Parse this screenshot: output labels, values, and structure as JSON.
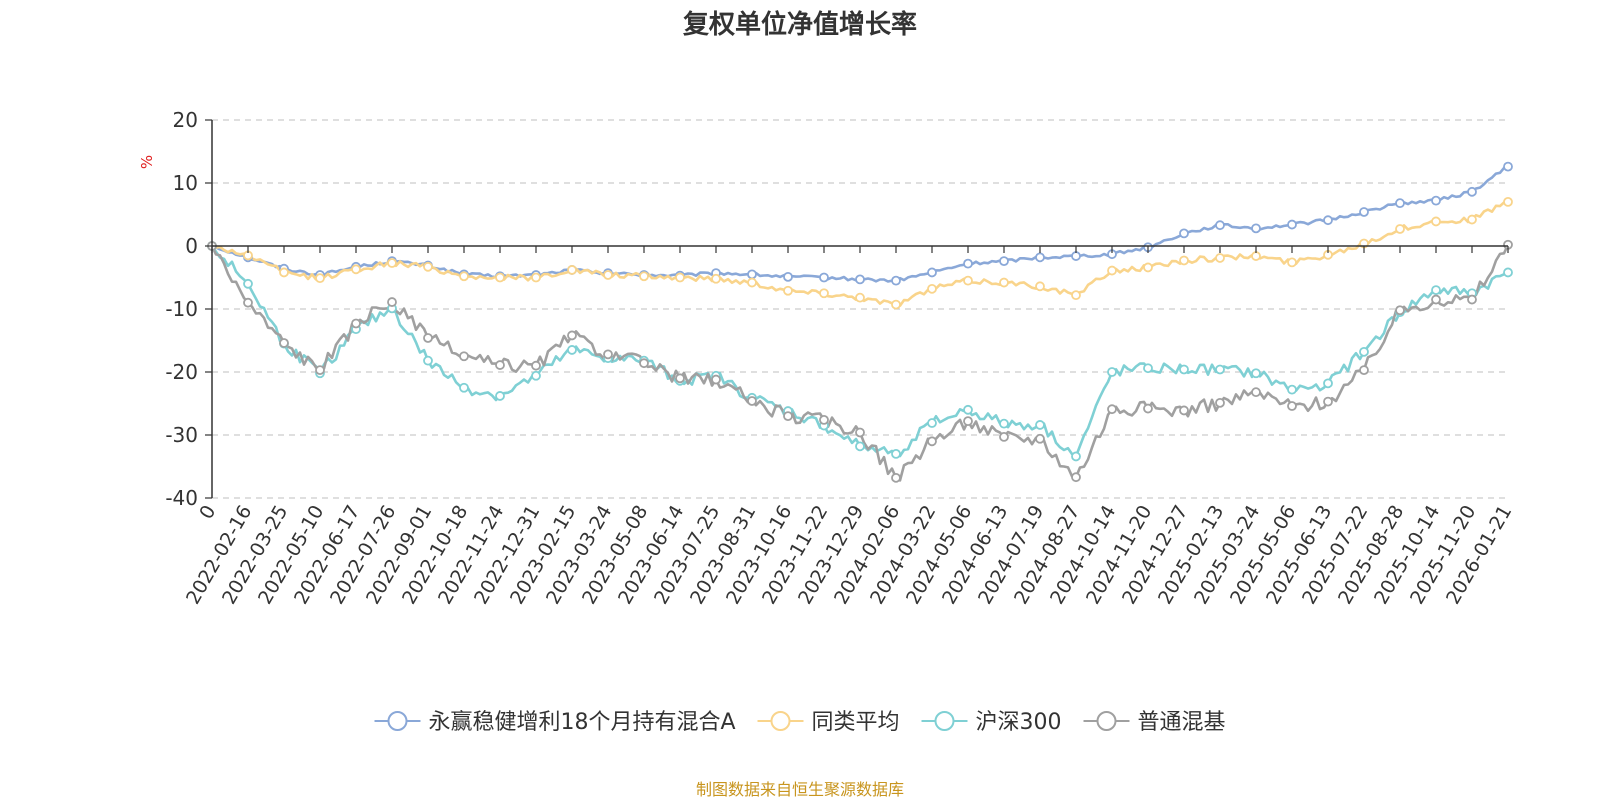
{
  "chart_data": {
    "type": "line",
    "title": "复权单位净值增长率",
    "ylabel": "%",
    "ylim": [
      -40,
      20
    ],
    "yticks": [
      20,
      10,
      0,
      -10,
      -20,
      -30,
      -40
    ],
    "ytick_labels": [
      "20",
      "10",
      "0",
      "-10",
      "-20",
      "-30",
      "-40"
    ],
    "grid": true,
    "legend_position": "bottom-center",
    "categories": [
      "0",
      "2022-02-16",
      "2022-03-25",
      "2022-05-10",
      "2022-06-17",
      "2022-07-26",
      "2022-09-01",
      "2022-10-18",
      "2022-11-24",
      "2022-12-31",
      "2023-02-15",
      "2023-03-24",
      "2023-05-08",
      "2023-06-14",
      "2023-07-25",
      "2023-08-31",
      "2023-10-16",
      "2023-11-22",
      "2023-12-29",
      "2024-02-06",
      "2024-03-22",
      "2024-05-06",
      "2024-06-13",
      "2024-07-19",
      "2024-08-27",
      "2024-10-14",
      "2024-11-20",
      "2024-12-27",
      "2025-02-13",
      "2025-03-24",
      "2025-05-06",
      "2025-06-13",
      "2025-07-22",
      "2025-08-28",
      "2025-10-14",
      "2025-11-20",
      "2026-01-21"
    ],
    "series": [
      {
        "name": "永赢稳健增利18个月持有混合A",
        "color": "#8aa8d8",
        "values": [
          0,
          -1.8,
          -3.6,
          -4.6,
          -3.3,
          -2.4,
          -3.1,
          -4.5,
          -4.8,
          -4.6,
          -3.8,
          -4.3,
          -4.6,
          -4.7,
          -4.3,
          -4.5,
          -4.9,
          -5.0,
          -5.3,
          -5.5,
          -4.2,
          -2.8,
          -2.4,
          -1.8,
          -1.6,
          -1.3,
          -0.2,
          2.0,
          3.3,
          2.8,
          3.4,
          4.1,
          5.4,
          6.8,
          7.2,
          8.6,
          12.6
        ]
      },
      {
        "name": "同类平均",
        "color": "#f9d48b",
        "values": [
          0,
          -1.5,
          -4.2,
          -5.1,
          -3.7,
          -2.7,
          -3.3,
          -4.8,
          -5.0,
          -5.0,
          -3.8,
          -4.6,
          -4.8,
          -5.0,
          -5.2,
          -5.8,
          -7.1,
          -7.5,
          -8.2,
          -9.3,
          -6.8,
          -5.5,
          -5.8,
          -6.4,
          -7.8,
          -3.9,
          -3.4,
          -2.3,
          -1.9,
          -1.6,
          -2.6,
          -1.4,
          0.4,
          2.7,
          3.9,
          4.2,
          7.0
        ]
      },
      {
        "name": "沪深300",
        "color": "#7fd0d4",
        "values": [
          0,
          -6.0,
          -15.5,
          -20.2,
          -13.2,
          -9.9,
          -18.2,
          -22.5,
          -23.8,
          -20.6,
          -16.5,
          -17.8,
          -18.2,
          -21.4,
          -20.6,
          -24.1,
          -26.2,
          -28.5,
          -31.8,
          -33.0,
          -28.1,
          -26.0,
          -28.2,
          -28.4,
          -33.4,
          -20.0,
          -19.4,
          -19.6,
          -19.6,
          -20.2,
          -22.8,
          -21.8,
          -16.8,
          -10.5,
          -7.0,
          -7.5,
          -4.2
        ]
      },
      {
        "name": "普通混基",
        "color": "#a0a0a0",
        "values": [
          0,
          -9.0,
          -15.4,
          -19.7,
          -12.3,
          -8.9,
          -14.6,
          -17.5,
          -18.9,
          -19.0,
          -14.2,
          -17.2,
          -18.6,
          -21.0,
          -21.2,
          -24.6,
          -27.0,
          -27.6,
          -29.6,
          -36.8,
          -31.0,
          -27.8,
          -30.3,
          -30.6,
          -36.7,
          -25.9,
          -25.8,
          -26.1,
          -24.9,
          -23.2,
          -25.4,
          -24.7,
          -19.7,
          -10.2,
          -8.5,
          -8.5,
          0.2
        ]
      }
    ]
  },
  "source_text": "制图数据来自恒生聚源数据库",
  "colors": {
    "axis": "#333333",
    "grid": "#cccccc",
    "unit_label": "#e02020",
    "source_text": "#c8951e"
  }
}
